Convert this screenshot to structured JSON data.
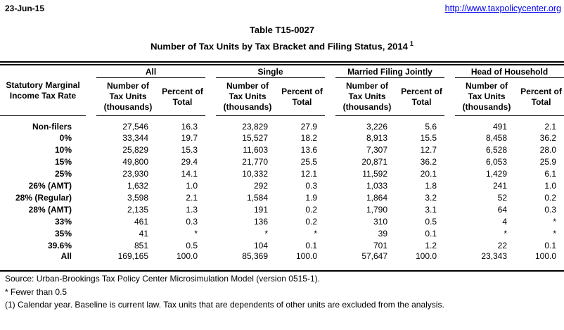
{
  "page": {
    "date": "23-Jun-15",
    "link": "http://www.taxpolicycenter.org",
    "title_line1": "Table T15-0027",
    "title_line2": "Number of Tax Units by Tax Bracket and Filing Status, 2014",
    "title_superscript": "1"
  },
  "table": {
    "row_header": {
      "line1": "Statutory Marginal",
      "line2": "Income Tax Rate"
    },
    "groups": [
      {
        "label": "All"
      },
      {
        "label": "Single"
      },
      {
        "label": "Married Filing Jointly"
      },
      {
        "label": "Head of Household"
      }
    ],
    "subheaders": {
      "number_label": "Number of Tax Units (thousands)",
      "percent_label": "Percent of Total"
    },
    "rows": [
      {
        "label": "Non-filers",
        "values": [
          "27,546",
          "16.3",
          "23,829",
          "27.9",
          "3,226",
          "5.6",
          "491",
          "2.1"
        ]
      },
      {
        "label": "0%",
        "values": [
          "33,344",
          "19.7",
          "15,527",
          "18.2",
          "8,913",
          "15.5",
          "8,458",
          "36.2"
        ]
      },
      {
        "label": "10%",
        "values": [
          "25,829",
          "15.3",
          "11,603",
          "13.6",
          "7,307",
          "12.7",
          "6,528",
          "28.0"
        ]
      },
      {
        "label": "15%",
        "values": [
          "49,800",
          "29.4",
          "21,770",
          "25.5",
          "20,871",
          "36.2",
          "6,053",
          "25.9"
        ]
      },
      {
        "label": "25%",
        "values": [
          "23,930",
          "14.1",
          "10,332",
          "12.1",
          "11,592",
          "20.1",
          "1,429",
          "6.1"
        ]
      },
      {
        "label": "26% (AMT)",
        "values": [
          "1,632",
          "1.0",
          "292",
          "0.3",
          "1,033",
          "1.8",
          "241",
          "1.0"
        ]
      },
      {
        "label": "28% (Regular)",
        "values": [
          "3,598",
          "2.1",
          "1,584",
          "1.9",
          "1,864",
          "3.2",
          "52",
          "0.2"
        ]
      },
      {
        "label": "28% (AMT)",
        "values": [
          "2,135",
          "1.3",
          "191",
          "0.2",
          "1,790",
          "3.1",
          "64",
          "0.3"
        ]
      },
      {
        "label": "33%",
        "values": [
          "461",
          "0.3",
          "136",
          "0.2",
          "310",
          "0.5",
          "4",
          "*"
        ]
      },
      {
        "label": "35%",
        "values": [
          "41",
          "*",
          "*",
          "*",
          "39",
          "0.1",
          "*",
          "*"
        ]
      },
      {
        "label": "39.6%",
        "values": [
          "851",
          "0.5",
          "104",
          "0.1",
          "701",
          "1.2",
          "22",
          "0.1"
        ]
      },
      {
        "label": "All",
        "values": [
          "169,165",
          "100.0",
          "85,369",
          "100.0",
          "57,647",
          "100.0",
          "23,343",
          "100.0"
        ]
      }
    ]
  },
  "footer": {
    "source": "Source: Urban-Brookings Tax Policy Center Microsimulation Model (version 0515-1).",
    "asterisk_note": "* Fewer than 0.5",
    "footnote1": "(1) Calendar year. Baseline is current law. Tax units that are dependents of other units are excluded from the analysis."
  },
  "colors": {
    "link": "#0000EE",
    "text": "#000000",
    "background": "#FFFFFF"
  }
}
